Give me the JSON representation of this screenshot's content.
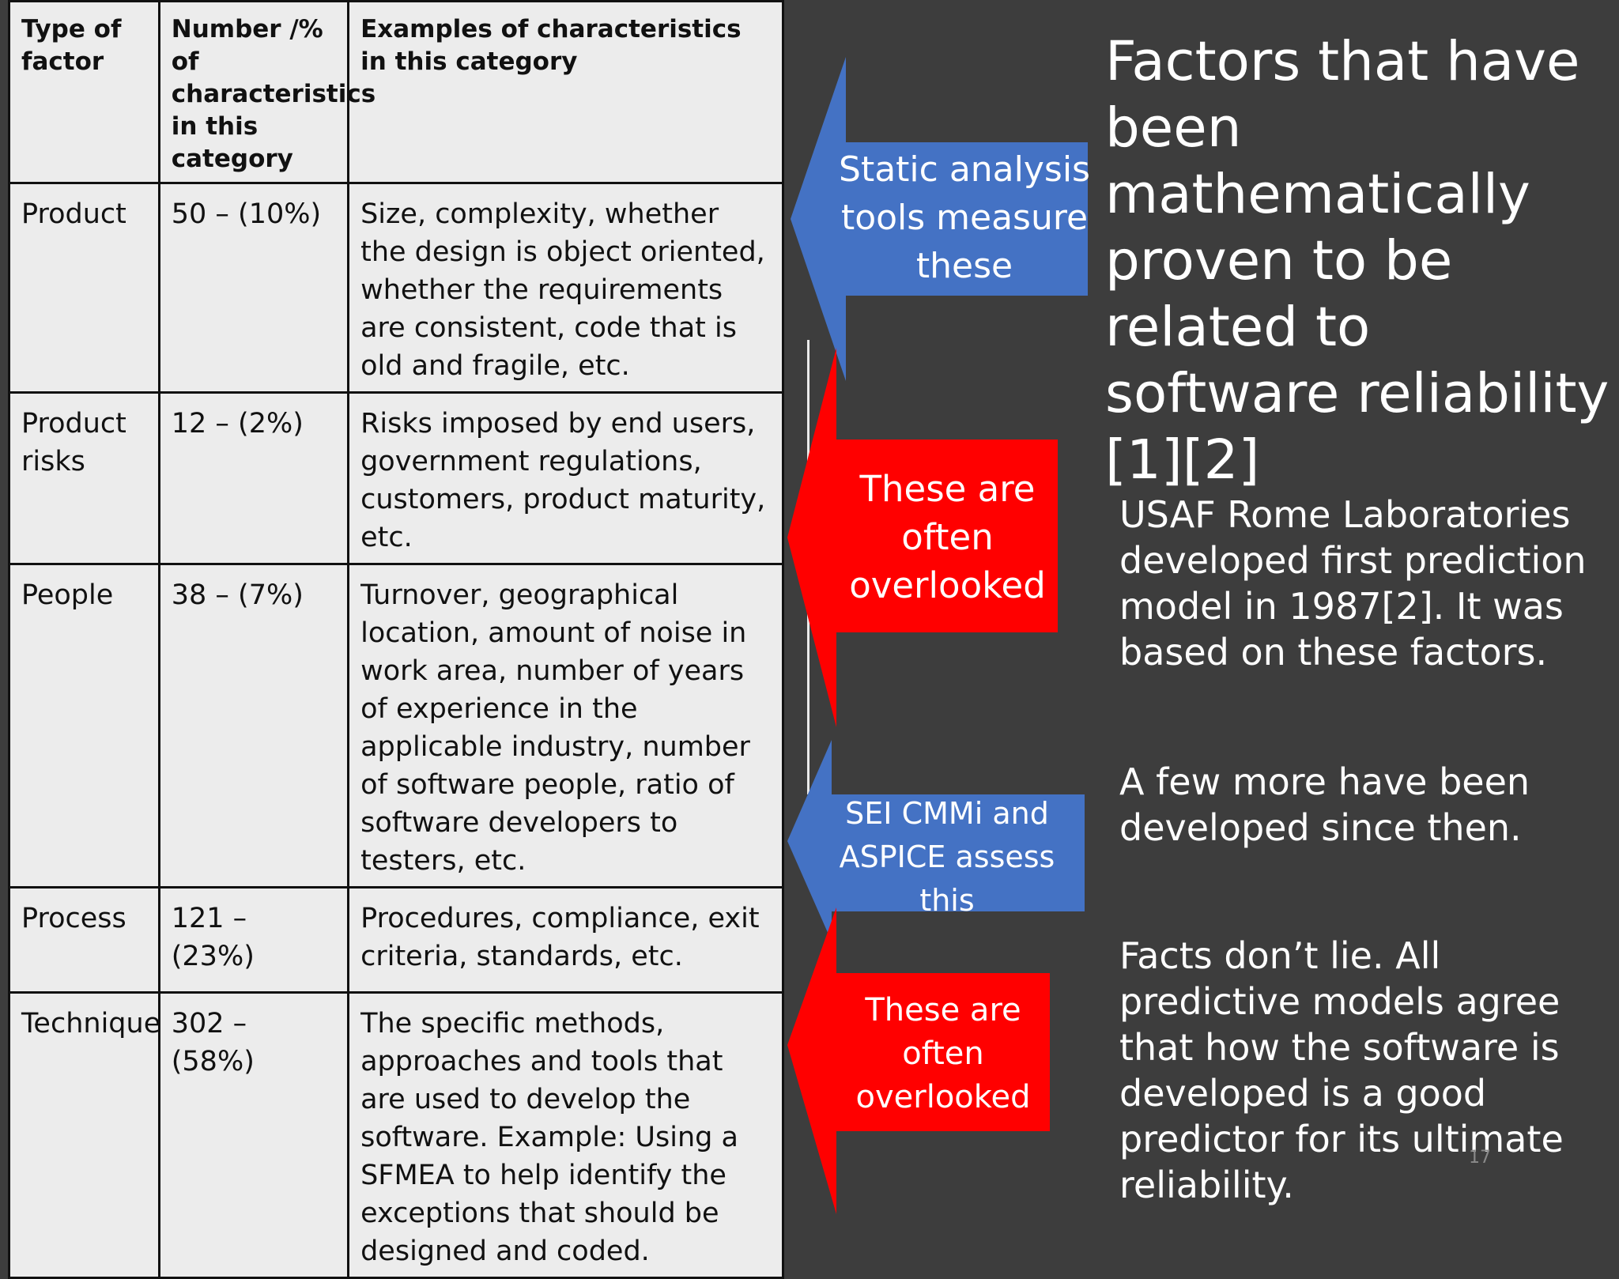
{
  "table": {
    "headers": [
      "Type of factor",
      "Number /% of characteristics in this category",
      "Examples of characteristics in this category"
    ],
    "rows": [
      {
        "type": "Product",
        "count": "50 – (10%)",
        "examples": "Size, complexity, whether the design is object oriented, whether the requirements are consistent, code that is old and fragile, etc."
      },
      {
        "type": "Product risks",
        "count": "12 – (2%)",
        "examples": "Risks imposed by end users, government regulations, customers, product maturity, etc."
      },
      {
        "type": "People",
        "count": "38 – (7%)",
        "examples": "Turnover, geographical location, amount of noise in work area, number of years of experience in the applicable industry, number of software people, ratio of software developers to testers, etc."
      },
      {
        "type": "Process",
        "count": "121 – (23%)",
        "examples": "Procedures, compliance, exit criteria, standards, etc."
      },
      {
        "type": "Technique",
        "count": "302 – (58%)",
        "examples": "The specific methods, approaches and tools that are used to develop the software. Example: Using a SFMEA to help identify the exceptions that should be designed and coded."
      }
    ]
  },
  "arrows": {
    "static_analysis": {
      "text": "Static analysis tools measure these",
      "color": "#4472c4"
    },
    "overlooked_1": {
      "text": "These are often overlooked",
      "color": "#ff0000"
    },
    "sei_cmmi": {
      "text": "SEI CMMi and ASPICE assess this",
      "color": "#4472c4"
    },
    "overlooked_2": {
      "text": "These are often overlooked",
      "color": "#ff0000"
    }
  },
  "title": "Factors that have been mathematically proven to be related to software reliability [1][2]",
  "paragraphs": {
    "usaf": "USAF Rome Laboratories developed first prediction model in 1987[2].  It was based on these factors.",
    "few_more": "A few more have been developed since then.",
    "facts": "Facts don’t lie. All predictive models agree that how the software is developed is a good predictor for its ultimate reliability."
  },
  "page_number": "17"
}
